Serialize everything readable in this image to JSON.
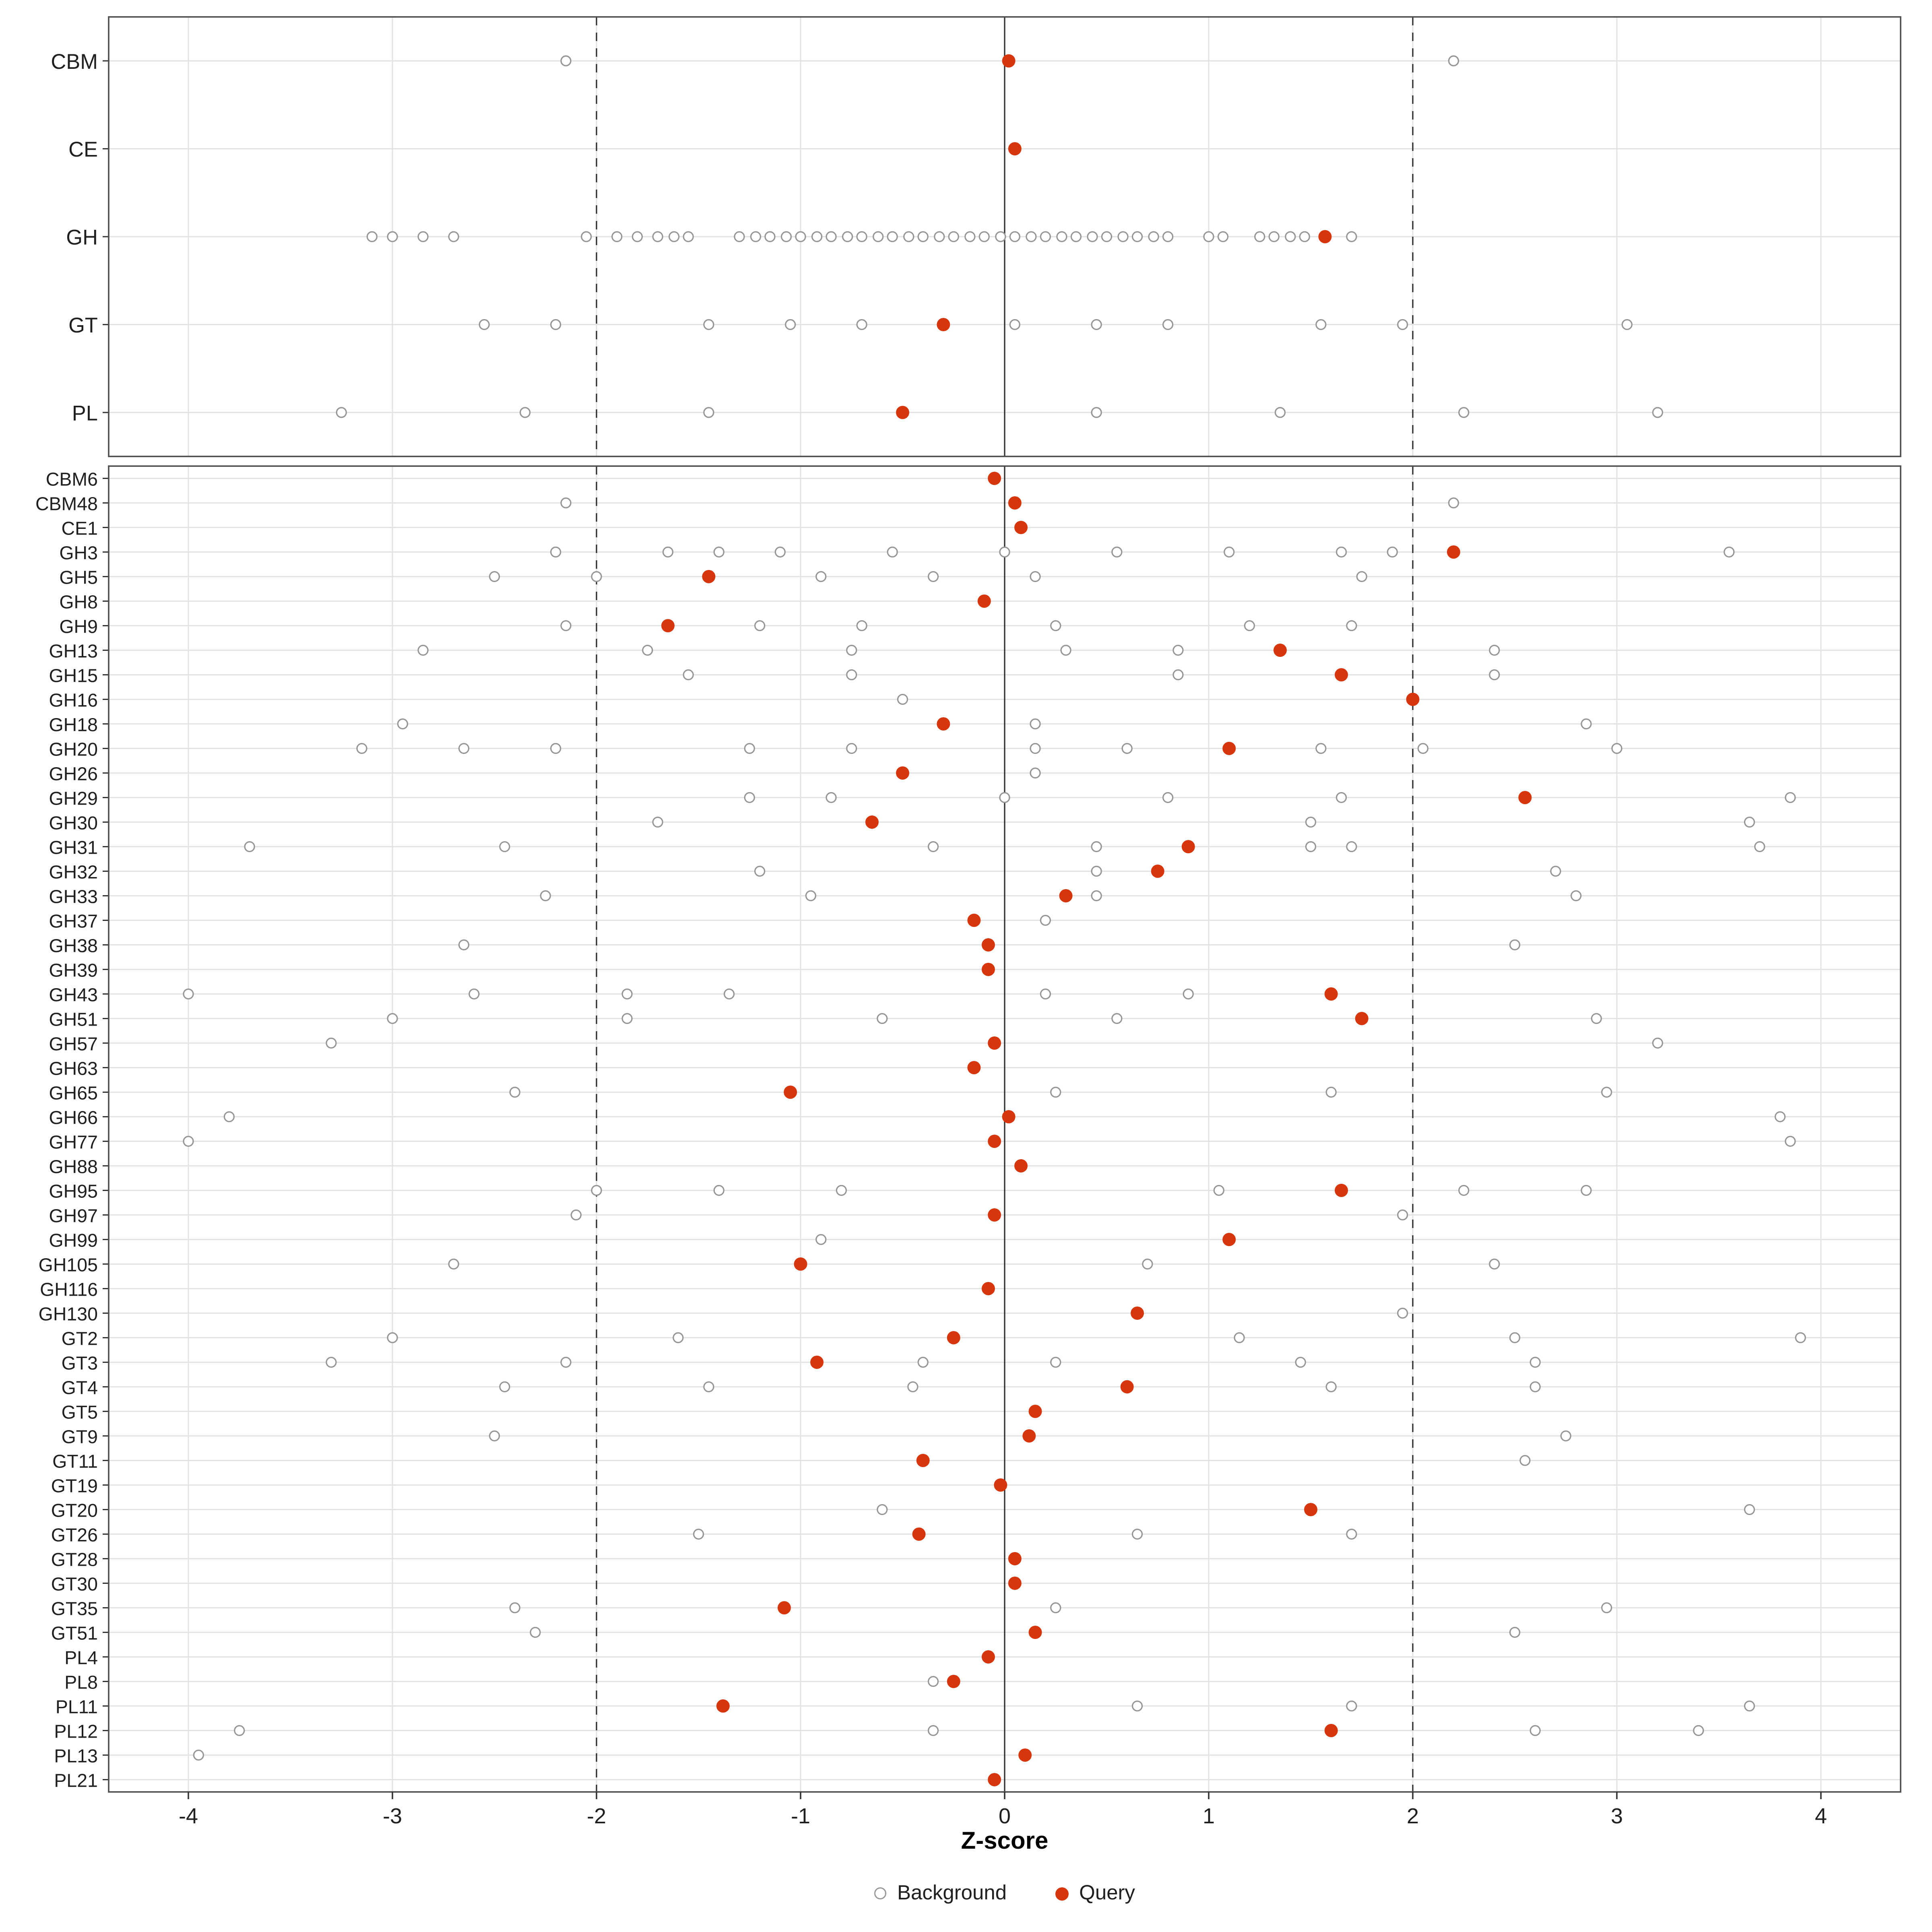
{
  "chart_data": {
    "type": "scatter",
    "title": "",
    "xlabel": "Z-score",
    "xlim": [
      -4.4,
      4.4
    ],
    "x_ticks": [
      -4,
      -3,
      -2,
      -1,
      0,
      1,
      2,
      3,
      4
    ],
    "vlines": {
      "solid": [
        0
      ],
      "dashed": [
        -2,
        2
      ]
    },
    "grid": true,
    "legend_position": "bottom",
    "legend_items": [
      {
        "label": "Background",
        "marker": "open-circle",
        "color": "#969696"
      },
      {
        "label": "Query",
        "marker": "filled-circle",
        "color": "#D7350C"
      }
    ],
    "style": {
      "grid_color": "#e2e2e2",
      "panel_border_color": "#4d4d4d",
      "refline_color": "#303030",
      "background_point_color": "#969696",
      "query_point_color": "#D7350C"
    },
    "panels": [
      {
        "name": "category-summary",
        "rows": [
          {
            "label": "CBM",
            "query": 0.02,
            "background": [
              -2.15,
              2.2
            ]
          },
          {
            "label": "CE",
            "query": 0.05,
            "background": []
          },
          {
            "label": "GH",
            "query": 1.57,
            "background": [
              -3.1,
              -3.0,
              -2.85,
              -2.7,
              -2.05,
              -1.9,
              -1.8,
              -1.7,
              -1.62,
              -1.55,
              -1.3,
              -1.22,
              -1.15,
              -1.07,
              -1.0,
              -0.92,
              -0.85,
              -0.77,
              -0.7,
              -0.62,
              -0.55,
              -0.47,
              -0.4,
              -0.32,
              -0.25,
              -0.17,
              -0.1,
              -0.02,
              0.05,
              0.13,
              0.2,
              0.28,
              0.35,
              0.43,
              0.5,
              0.58,
              0.65,
              0.73,
              0.8,
              1.0,
              1.07,
              1.25,
              1.32,
              1.4,
              1.47,
              1.7
            ]
          },
          {
            "label": "GT",
            "query": -0.3,
            "background": [
              -2.55,
              -2.2,
              -1.45,
              -1.05,
              -0.7,
              0.05,
              0.45,
              0.8,
              1.55,
              1.95,
              3.05
            ]
          },
          {
            "label": "PL",
            "query": -0.5,
            "background": [
              -3.25,
              -2.35,
              -1.45,
              0.45,
              1.35,
              2.25,
              3.2
            ]
          }
        ]
      },
      {
        "name": "family-detail",
        "rows": [
          {
            "label": "CBM6",
            "query": -0.05,
            "background": []
          },
          {
            "label": "CBM48",
            "query": 0.05,
            "background": [
              -2.15,
              2.2
            ]
          },
          {
            "label": "CE1",
            "query": 0.08,
            "background": []
          },
          {
            "label": "GH3",
            "query": 2.2,
            "background": [
              -2.2,
              -1.65,
              -1.4,
              -1.1,
              -0.55,
              0.0,
              0.55,
              1.1,
              1.65,
              1.9,
              3.55
            ]
          },
          {
            "label": "GH5",
            "query": -1.45,
            "background": [
              -2.5,
              -2.0,
              -0.9,
              -0.35,
              0.15,
              1.75
            ]
          },
          {
            "label": "GH8",
            "query": -0.1,
            "background": []
          },
          {
            "label": "GH9",
            "query": -1.65,
            "background": [
              -2.15,
              -1.2,
              -0.7,
              0.25,
              1.2,
              1.7
            ]
          },
          {
            "label": "GH13",
            "query": 1.35,
            "background": [
              -2.85,
              -1.75,
              -0.75,
              0.3,
              0.85,
              2.4
            ]
          },
          {
            "label": "GH15",
            "query": 1.65,
            "background": [
              -1.55,
              -0.75,
              0.85,
              2.4
            ]
          },
          {
            "label": "GH16",
            "query": 2.0,
            "background": [
              -0.5
            ]
          },
          {
            "label": "GH18",
            "query": -0.3,
            "background": [
              -2.95,
              0.15,
              2.85
            ]
          },
          {
            "label": "GH20",
            "query": 1.1,
            "background": [
              -3.15,
              -2.65,
              -2.2,
              -1.25,
              -0.75,
              0.15,
              0.6,
              1.55,
              2.05,
              3.0
            ]
          },
          {
            "label": "GH26",
            "query": -0.5,
            "background": [
              0.15
            ]
          },
          {
            "label": "GH29",
            "query": 2.55,
            "background": [
              -1.25,
              -0.85,
              0.0,
              0.8,
              1.65,
              3.85
            ]
          },
          {
            "label": "GH30",
            "query": -0.65,
            "background": [
              -1.7,
              1.5,
              3.65
            ]
          },
          {
            "label": "GH31",
            "query": 0.9,
            "background": [
              -3.7,
              -2.45,
              -0.35,
              0.45,
              1.5,
              1.7,
              3.7
            ]
          },
          {
            "label": "GH32",
            "query": 0.75,
            "background": [
              -1.2,
              0.45,
              2.7
            ]
          },
          {
            "label": "GH33",
            "query": 0.3,
            "background": [
              -2.25,
              -0.95,
              0.45,
              2.8
            ]
          },
          {
            "label": "GH37",
            "query": -0.15,
            "background": [
              0.2
            ]
          },
          {
            "label": "GH38",
            "query": -0.08,
            "background": [
              -2.65,
              2.5
            ]
          },
          {
            "label": "GH39",
            "query": -0.08,
            "background": []
          },
          {
            "label": "GH43",
            "query": 1.6,
            "background": [
              -4.0,
              -2.6,
              -1.85,
              -1.35,
              0.2,
              0.9
            ]
          },
          {
            "label": "GH51",
            "query": 1.75,
            "background": [
              -3.0,
              -1.85,
              -0.6,
              0.55,
              2.9
            ]
          },
          {
            "label": "GH57",
            "query": -0.05,
            "background": [
              -3.3,
              3.2
            ]
          },
          {
            "label": "GH63",
            "query": -0.15,
            "background": []
          },
          {
            "label": "GH65",
            "query": -1.05,
            "background": [
              -2.4,
              0.25,
              1.6,
              2.95
            ]
          },
          {
            "label": "GH66",
            "query": 0.02,
            "background": [
              -3.8,
              3.8
            ]
          },
          {
            "label": "GH77",
            "query": -0.05,
            "background": [
              -4.0,
              3.85
            ]
          },
          {
            "label": "GH88",
            "query": 0.08,
            "background": []
          },
          {
            "label": "GH95",
            "query": 1.65,
            "background": [
              -2.0,
              -1.4,
              -0.8,
              1.05,
              2.25,
              2.85
            ]
          },
          {
            "label": "GH97",
            "query": -0.05,
            "background": [
              -2.1,
              1.95
            ]
          },
          {
            "label": "GH99",
            "query": 1.1,
            "background": [
              -0.9
            ]
          },
          {
            "label": "GH105",
            "query": -1.0,
            "background": [
              -2.7,
              0.7,
              2.4
            ]
          },
          {
            "label": "GH116",
            "query": -0.08,
            "background": []
          },
          {
            "label": "GH130",
            "query": 0.65,
            "background": [
              1.95
            ]
          },
          {
            "label": "GT2",
            "query": -0.25,
            "background": [
              -3.0,
              -1.6,
              1.15,
              2.5,
              3.9
            ]
          },
          {
            "label": "GT3",
            "query": -0.92,
            "background": [
              -3.3,
              -2.15,
              -0.4,
              0.25,
              1.45,
              2.6
            ]
          },
          {
            "label": "GT4",
            "query": 0.6,
            "background": [
              -2.45,
              -1.45,
              -0.45,
              1.6,
              2.6
            ]
          },
          {
            "label": "GT5",
            "query": 0.15,
            "background": []
          },
          {
            "label": "GT9",
            "query": 0.12,
            "background": [
              -2.5,
              2.75
            ]
          },
          {
            "label": "GT11",
            "query": -0.4,
            "background": [
              2.55
            ]
          },
          {
            "label": "GT19",
            "query": -0.02,
            "background": []
          },
          {
            "label": "GT20",
            "query": 1.5,
            "background": [
              -0.6,
              3.65
            ]
          },
          {
            "label": "GT26",
            "query": -0.42,
            "background": [
              -1.5,
              0.65,
              1.7
            ]
          },
          {
            "label": "GT28",
            "query": 0.05,
            "background": []
          },
          {
            "label": "GT30",
            "query": 0.05,
            "background": []
          },
          {
            "label": "GT35",
            "query": -1.08,
            "background": [
              -2.4,
              0.25,
              2.95
            ]
          },
          {
            "label": "GT51",
            "query": 0.15,
            "background": [
              -2.3,
              2.5
            ]
          },
          {
            "label": "PL4",
            "query": -0.08,
            "background": []
          },
          {
            "label": "PL8",
            "query": -0.25,
            "background": [
              -0.35
            ]
          },
          {
            "label": "PL11",
            "query": -1.38,
            "background": [
              0.65,
              1.7,
              3.65
            ]
          },
          {
            "label": "PL12",
            "query": 1.6,
            "background": [
              -3.75,
              -0.35,
              2.6,
              3.4
            ]
          },
          {
            "label": "PL13",
            "query": 0.1,
            "background": [
              -3.95
            ]
          },
          {
            "label": "PL21",
            "query": -0.05,
            "background": []
          }
        ]
      }
    ]
  }
}
